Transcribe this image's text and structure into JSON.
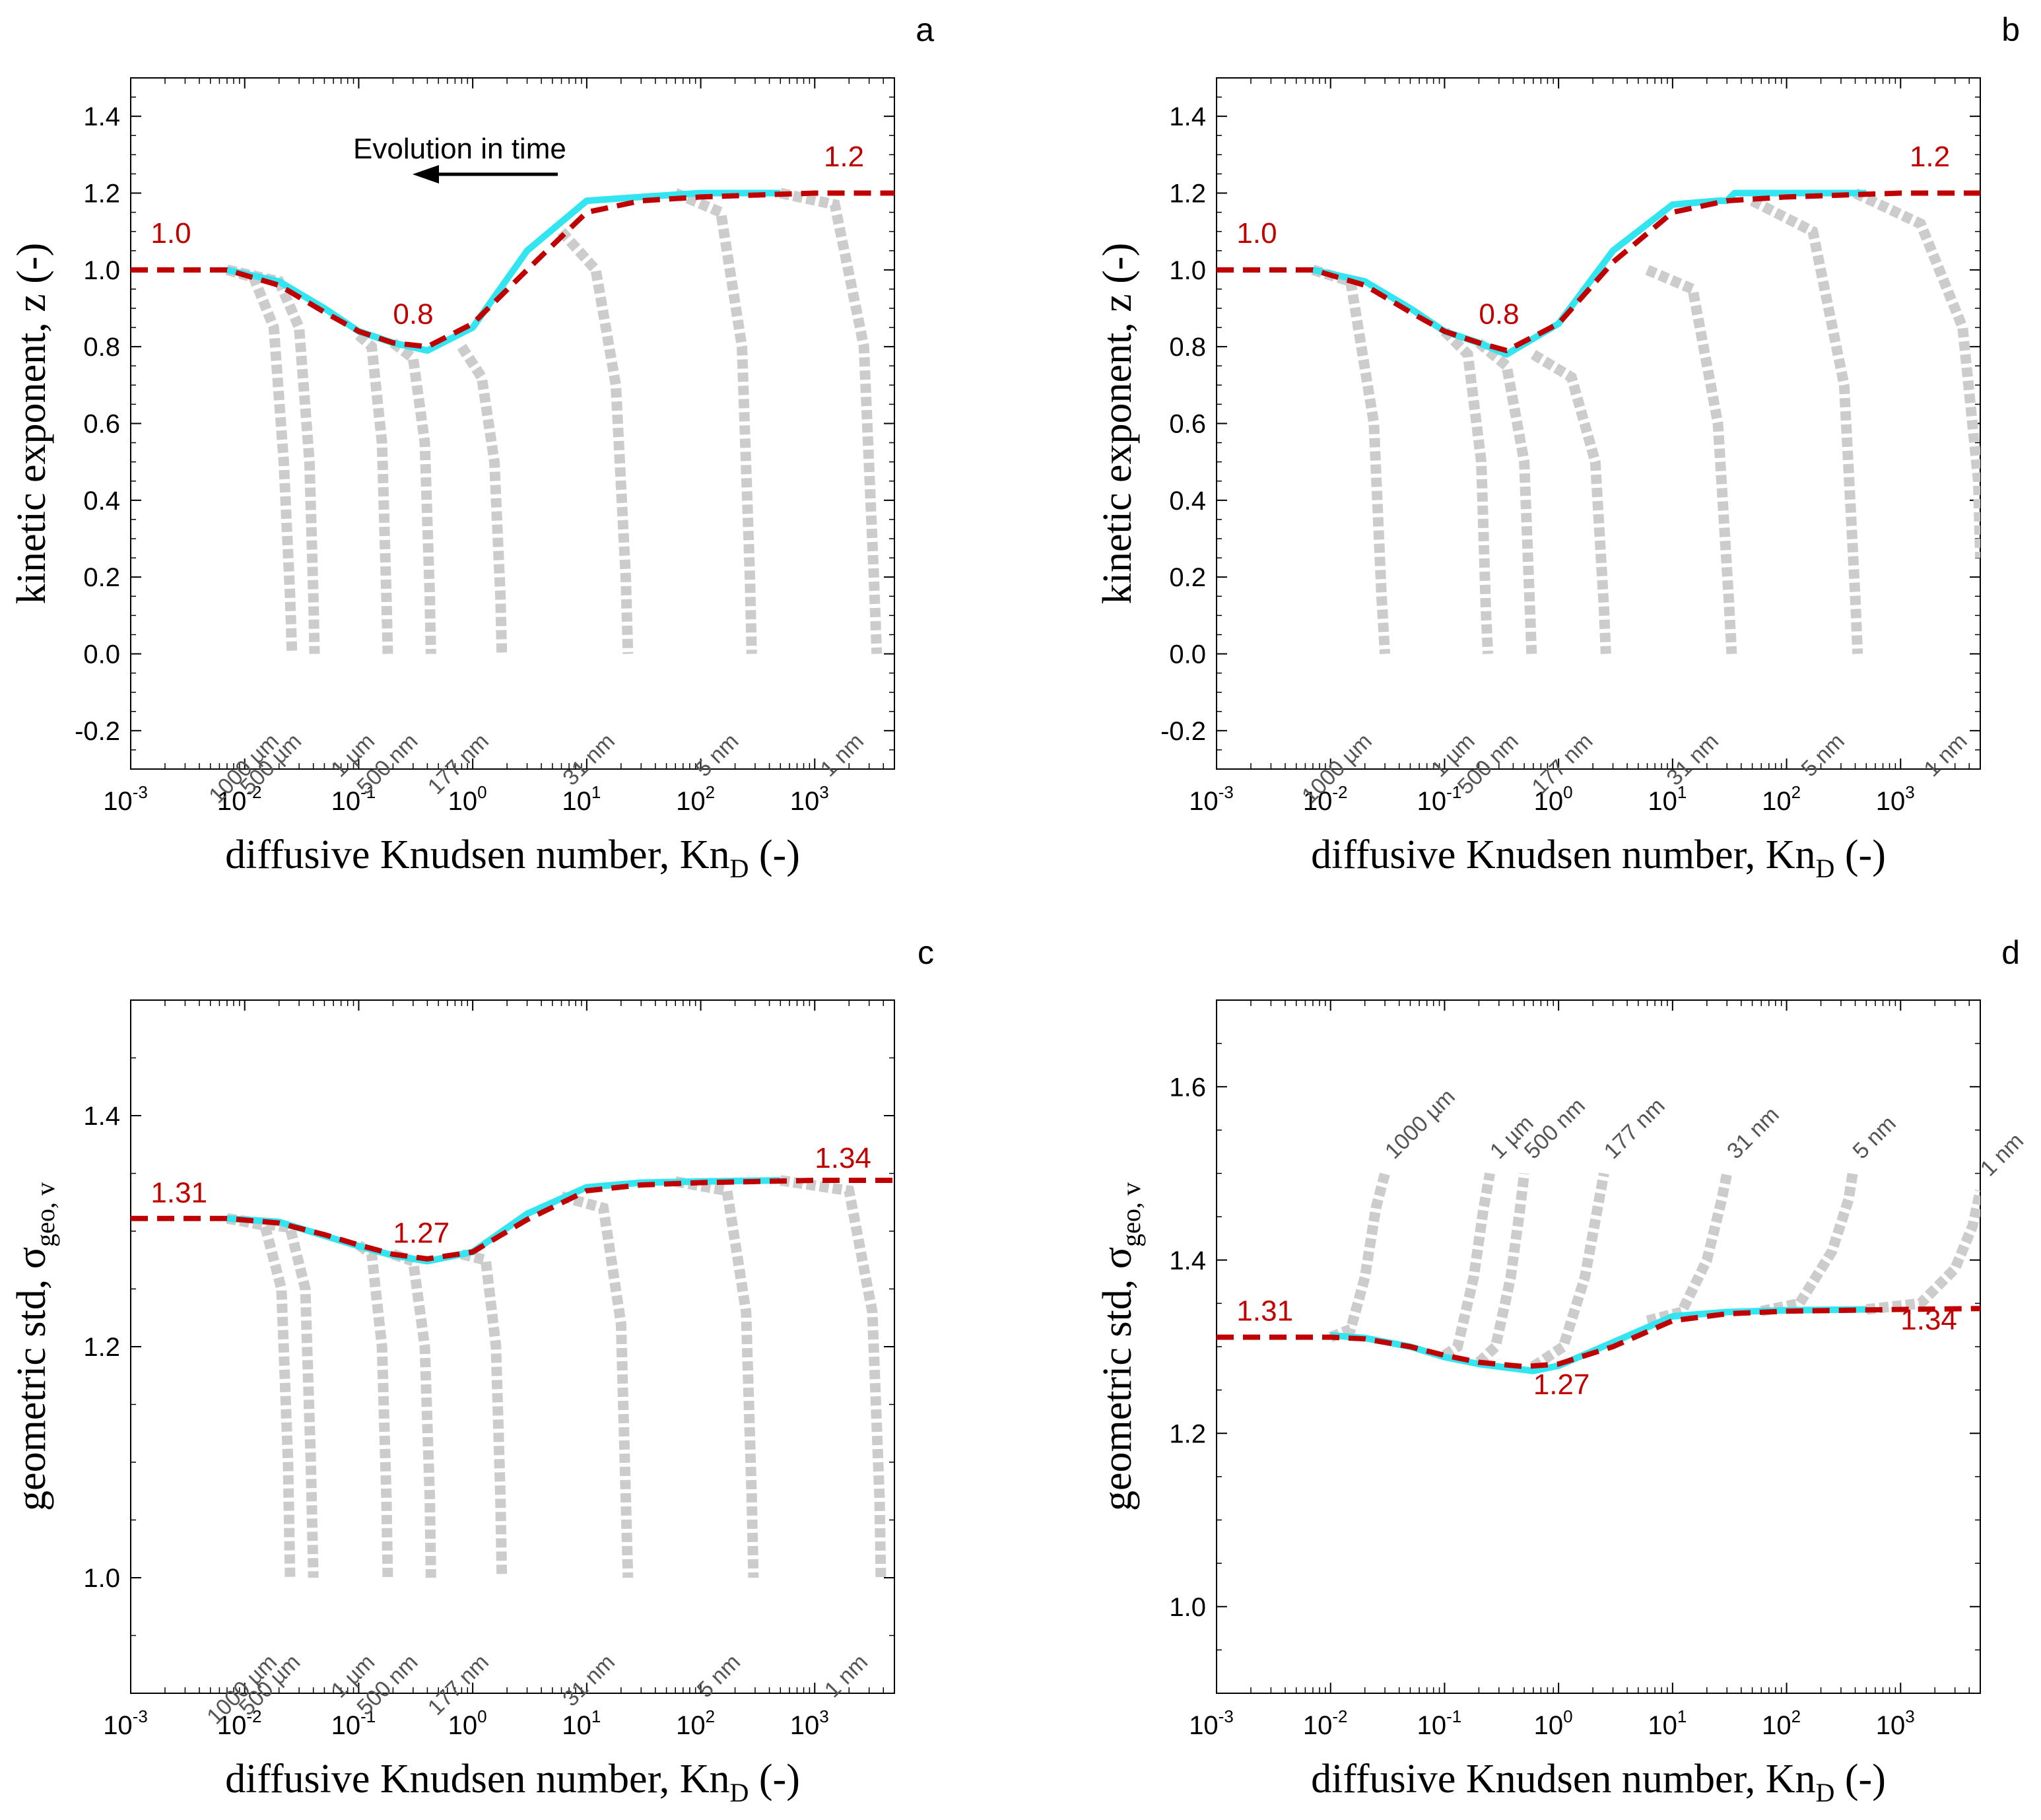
{
  "chart_data": [
    {
      "panel": "a",
      "type": "line",
      "xscale": "log",
      "xlim": [
        0.001,
        5000
      ],
      "ylim": [
        -0.3,
        1.5
      ],
      "yticks": [
        "-0.2",
        "0.0",
        "0.2",
        "0.4",
        "0.6",
        "0.8",
        "1.0",
        "1.2",
        "1.4"
      ],
      "xlabel": "diffusive Knudsen number, Kn",
      "xlabel_sub": "D",
      "xlabel_tail": " (-)",
      "ylabel": "kinetic exponent, z (-)",
      "ylabel_sub": "",
      "annotation": "Evolution in time",
      "red_labels": [
        {
          "text": "1.0",
          "x": 0.0015,
          "y": 1.07
        },
        {
          "text": "0.8",
          "x": 0.2,
          "y": 0.86
        },
        {
          "text": "1.2",
          "x": 1200,
          "y": 1.27
        }
      ],
      "reference": {
        "name": "reference",
        "x": [
          0.001,
          0.007,
          0.02,
          0.05,
          0.1,
          0.2,
          0.4,
          1,
          3,
          10,
          30,
          100,
          1000,
          5000
        ],
        "y": [
          1.0,
          1.0,
          0.96,
          0.89,
          0.84,
          0.81,
          0.8,
          0.86,
          1.0,
          1.15,
          1.18,
          1.19,
          1.2,
          1.2
        ]
      },
      "model": {
        "name": "model",
        "x": [
          0.007,
          0.02,
          0.05,
          0.1,
          0.2,
          0.4,
          1,
          3,
          10,
          30,
          100,
          500
        ],
        "y": [
          1.0,
          0.97,
          0.9,
          0.84,
          0.81,
          0.79,
          0.85,
          1.05,
          1.18,
          1.19,
          1.2,
          1.2
        ]
      },
      "size_curves": [
        {
          "label": "1000 µm",
          "x": [
            0.007,
            0.012,
            0.018,
            0.022,
            0.025,
            0.026
          ],
          "y": [
            1.0,
            0.98,
            0.85,
            0.5,
            0.15,
            0.0
          ]
        },
        {
          "label": "500 µm",
          "x": [
            0.007,
            0.02,
            0.03,
            0.037,
            0.04,
            0.041
          ],
          "y": [
            1.0,
            0.97,
            0.85,
            0.5,
            0.15,
            0.0
          ]
        },
        {
          "label": "1 µm",
          "x": [
            0.1,
            0.13,
            0.16,
            0.175,
            0.18
          ],
          "y": [
            0.83,
            0.8,
            0.55,
            0.15,
            0.0
          ]
        },
        {
          "label": "500 nm",
          "x": [
            0.2,
            0.3,
            0.38,
            0.42,
            0.43
          ],
          "y": [
            0.81,
            0.77,
            0.55,
            0.15,
            0.0
          ]
        },
        {
          "label": "177 nm",
          "x": [
            0.8,
            1.2,
            1.55,
            1.75,
            1.8
          ],
          "y": [
            0.8,
            0.72,
            0.5,
            0.15,
            0.0
          ]
        },
        {
          "label": "31 nm",
          "x": [
            6,
            12,
            18,
            22,
            23
          ],
          "y": [
            1.1,
            1.0,
            0.7,
            0.2,
            0.0
          ]
        },
        {
          "label": "5 nm",
          "x": [
            60,
            150,
            230,
            270,
            280
          ],
          "y": [
            1.2,
            1.15,
            0.8,
            0.2,
            0.0
          ]
        },
        {
          "label": "1 nm",
          "x": [
            500,
            1500,
            2700,
            3300,
            3500
          ],
          "y": [
            1.2,
            1.17,
            0.8,
            0.2,
            0.0
          ]
        }
      ]
    },
    {
      "panel": "b",
      "type": "line",
      "xscale": "log",
      "xlim": [
        0.001,
        5000
      ],
      "ylim": [
        -0.3,
        1.5
      ],
      "yticks": [
        "-0.2",
        "0.0",
        "0.2",
        "0.4",
        "0.6",
        "0.8",
        "1.0",
        "1.2",
        "1.4"
      ],
      "xlabel": "diffusive Knudsen number, Kn",
      "xlabel_sub": "D",
      "xlabel_tail": " (-)",
      "ylabel": "kinetic exponent, z (-)",
      "ylabel_sub": "",
      "red_labels": [
        {
          "text": "1.0",
          "x": 0.0015,
          "y": 1.07
        },
        {
          "text": "0.8",
          "x": 0.2,
          "y": 0.86
        },
        {
          "text": "1.2",
          "x": 1200,
          "y": 1.27
        }
      ],
      "reference": {
        "name": "reference",
        "x": [
          0.001,
          0.007,
          0.02,
          0.05,
          0.1,
          0.2,
          0.35,
          1,
          3,
          10,
          30,
          100,
          1000,
          5000
        ],
        "y": [
          1.0,
          1.0,
          0.96,
          0.89,
          0.84,
          0.81,
          0.79,
          0.86,
          1.02,
          1.15,
          1.18,
          1.19,
          1.2,
          1.2
        ]
      },
      "model": {
        "name": "model",
        "x": [
          0.007,
          0.02,
          0.05,
          0.1,
          0.2,
          0.35,
          1,
          3,
          10,
          25,
          30,
          35,
          100,
          500
        ],
        "y": [
          1.0,
          0.97,
          0.9,
          0.84,
          0.81,
          0.78,
          0.86,
          1.05,
          1.17,
          1.18,
          1.18,
          1.2,
          1.2,
          1.2
        ]
      },
      "size_curves": [
        {
          "label": "1000 µm",
          "x": [
            0.007,
            0.015,
            0.024,
            0.028,
            0.03
          ],
          "y": [
            1.0,
            0.97,
            0.6,
            0.15,
            0.0
          ]
        },
        {
          "label": "1 µm",
          "x": [
            0.1,
            0.16,
            0.21,
            0.23,
            0.24
          ],
          "y": [
            0.84,
            0.78,
            0.5,
            0.12,
            0.0
          ]
        },
        {
          "label": "500 nm",
          "x": [
            0.2,
            0.35,
            0.5,
            0.56,
            0.58
          ],
          "y": [
            0.81,
            0.75,
            0.5,
            0.12,
            0.0
          ]
        },
        {
          "label": "177 nm",
          "x": [
            0.6,
            1.3,
            2.1,
            2.5,
            2.6
          ],
          "y": [
            0.78,
            0.72,
            0.5,
            0.12,
            0.0
          ]
        },
        {
          "label": "31 nm",
          "x": [
            6,
            15,
            25,
            31,
            33
          ],
          "y": [
            1.0,
            0.95,
            0.6,
            0.15,
            0.0
          ]
        },
        {
          "label": "5 nm",
          "x": [
            50,
            170,
            320,
            400,
            420
          ],
          "y": [
            1.18,
            1.1,
            0.7,
            0.15,
            0.0
          ]
        },
        {
          "label": "1 nm",
          "x": [
            400,
            1500,
            3500,
            4800,
            5000
          ],
          "y": [
            1.2,
            1.12,
            0.85,
            0.45,
            0.25
          ]
        }
      ]
    },
    {
      "panel": "c",
      "type": "line",
      "xscale": "log",
      "xlim": [
        0.001,
        5000
      ],
      "ylim": [
        0.9,
        1.5
      ],
      "yticks": [
        "1.0",
        "1.2",
        "1.4"
      ],
      "xlabel": "diffusive Knudsen number, Kn",
      "xlabel_sub": "D",
      "xlabel_tail": " (-)",
      "ylabel": "geometric std, σ",
      "ylabel_sub": "geo, v",
      "red_labels": [
        {
          "text": "1.31",
          "x": 0.0015,
          "y": 1.325
        },
        {
          "text": "1.27",
          "x": 0.2,
          "y": 1.29
        },
        {
          "text": "1.34",
          "x": 1000,
          "y": 1.355
        }
      ],
      "reference": {
        "name": "reference",
        "x": [
          0.001,
          0.007,
          0.02,
          0.05,
          0.1,
          0.2,
          0.4,
          1,
          3,
          10,
          30,
          100,
          1000,
          5000
        ],
        "y": [
          1.311,
          1.311,
          1.307,
          1.297,
          1.288,
          1.28,
          1.276,
          1.282,
          1.31,
          1.335,
          1.34,
          1.342,
          1.344,
          1.344
        ]
      },
      "model": {
        "name": "model",
        "x": [
          0.007,
          0.02,
          0.05,
          0.1,
          0.2,
          0.4,
          1,
          3,
          10,
          30,
          100,
          500
        ],
        "y": [
          1.311,
          1.308,
          1.296,
          1.287,
          1.279,
          1.274,
          1.282,
          1.315,
          1.338,
          1.342,
          1.343,
          1.344
        ]
      },
      "size_curves": [
        {
          "label": "1000 µm",
          "x": [
            0.007,
            0.015,
            0.021,
            0.024,
            0.025
          ],
          "y": [
            1.311,
            1.305,
            1.25,
            1.1,
            1.0
          ]
        },
        {
          "label": "500 µm",
          "x": [
            0.007,
            0.025,
            0.034,
            0.038,
            0.04
          ],
          "y": [
            1.311,
            1.303,
            1.25,
            1.1,
            1.0
          ]
        },
        {
          "label": "1 µm",
          "x": [
            0.1,
            0.13,
            0.16,
            0.175,
            0.18
          ],
          "y": [
            1.288,
            1.28,
            1.2,
            1.07,
            1.0
          ]
        },
        {
          "label": "500 nm",
          "x": [
            0.2,
            0.3,
            0.38,
            0.42,
            0.43
          ],
          "y": [
            1.28,
            1.274,
            1.2,
            1.07,
            1.0
          ]
        },
        {
          "label": "177 nm",
          "x": [
            0.8,
            1.3,
            1.6,
            1.75,
            1.8
          ],
          "y": [
            1.28,
            1.275,
            1.2,
            1.07,
            1.0
          ]
        },
        {
          "label": "31 nm",
          "x": [
            6,
            14,
            20,
            22,
            23
          ],
          "y": [
            1.33,
            1.32,
            1.22,
            1.07,
            1.0
          ]
        },
        {
          "label": "5 nm",
          "x": [
            60,
            170,
            250,
            280,
            290
          ],
          "y": [
            1.343,
            1.335,
            1.23,
            1.07,
            1.0
          ]
        },
        {
          "label": "1 nm",
          "x": [
            500,
            2000,
            3200,
            3700,
            3800
          ],
          "y": [
            1.344,
            1.335,
            1.23,
            1.07,
            1.0
          ]
        }
      ]
    },
    {
      "panel": "d",
      "type": "line",
      "xscale": "log",
      "xlim": [
        0.001,
        5000
      ],
      "ylim": [
        0.9,
        1.7
      ],
      "yticks": [
        "1.0",
        "1.2",
        "1.4",
        "1.6"
      ],
      "xlabel": "diffusive Knudsen number, Kn",
      "xlabel_sub": "D",
      "xlabel_tail": " (-)",
      "ylabel": "geometric std, σ",
      "ylabel_sub": "geo, v",
      "red_labels": [
        {
          "text": "1.31",
          "x": 0.0015,
          "y": 1.33
        },
        {
          "text": "1.27",
          "x": 0.6,
          "y": 1.245
        },
        {
          "text": "1.34",
          "x": 1000,
          "y": 1.32
        }
      ],
      "reference": {
        "name": "reference",
        "x": [
          0.001,
          0.01,
          0.02,
          0.05,
          0.1,
          0.2,
          0.5,
          1,
          3,
          10,
          30,
          100,
          1000,
          5000
        ],
        "y": [
          1.311,
          1.311,
          1.309,
          1.3,
          1.29,
          1.282,
          1.277,
          1.28,
          1.3,
          1.33,
          1.338,
          1.341,
          1.343,
          1.344
        ]
      },
      "model": {
        "name": "model",
        "x": [
          0.01,
          0.02,
          0.05,
          0.1,
          0.2,
          0.6,
          1,
          3,
          10,
          30,
          100,
          500
        ],
        "y": [
          1.313,
          1.31,
          1.3,
          1.288,
          1.28,
          1.272,
          1.278,
          1.305,
          1.335,
          1.34,
          1.342,
          1.343
        ]
      },
      "size_curves": [
        {
          "label": "1000 µm",
          "x": [
            0.01,
            0.015,
            0.02,
            0.025,
            0.03
          ],
          "y": [
            1.311,
            1.32,
            1.38,
            1.46,
            1.5
          ]
        },
        {
          "label": "1 µm",
          "x": [
            0.1,
            0.13,
            0.18,
            0.22,
            0.25
          ],
          "y": [
            1.29,
            1.3,
            1.38,
            1.46,
            1.5
          ]
        },
        {
          "label": "500 nm",
          "x": [
            0.2,
            0.28,
            0.38,
            0.46,
            0.5
          ],
          "y": [
            1.282,
            1.3,
            1.38,
            1.46,
            1.5
          ]
        },
        {
          "label": "177 nm",
          "x": [
            0.6,
            1.1,
            1.7,
            2.2,
            2.5
          ],
          "y": [
            1.277,
            1.3,
            1.38,
            1.46,
            1.5
          ]
        },
        {
          "label": "31 nm",
          "x": [
            6,
            12,
            20,
            27,
            30
          ],
          "y": [
            1.33,
            1.34,
            1.4,
            1.47,
            1.5
          ]
        },
        {
          "label": "5 nm",
          "x": [
            60,
            130,
            250,
            350,
            380
          ],
          "y": [
            1.341,
            1.35,
            1.41,
            1.47,
            1.5
          ]
        },
        {
          "label": "1 nm",
          "x": [
            500,
            1500,
            3000,
            4300,
            5000
          ],
          "y": [
            1.343,
            1.35,
            1.39,
            1.44,
            1.48
          ]
        }
      ]
    }
  ],
  "colors": {
    "reference": "#c00000",
    "model": "#33e5f0",
    "size_curves": "#cccccc",
    "label_red": "#c00000"
  }
}
